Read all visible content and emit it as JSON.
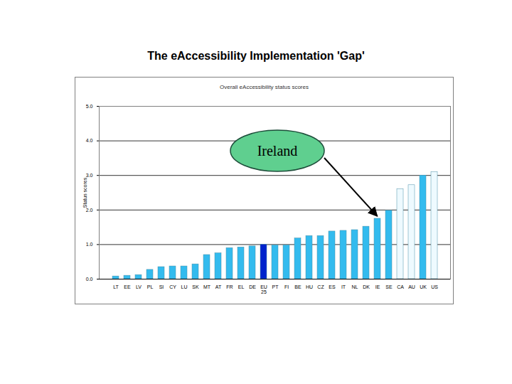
{
  "chart_data": {
    "type": "bar",
    "title": "The eAccessibility Implementation 'Gap'",
    "subtitle": "Overall eAccessibility status scores",
    "y_label": "Status scores",
    "categories": [
      "LT",
      "EE",
      "LV",
      "PL",
      "SI",
      "CY",
      "LU",
      "SK",
      "MT",
      "AT",
      "FR",
      "EL",
      "DE",
      "EU 25",
      "PT",
      "FI",
      "BE",
      "HU",
      "CZ",
      "ES",
      "IT",
      "NL",
      "DK",
      "IE",
      "SE",
      "CA",
      "AU",
      "UK",
      "US"
    ],
    "values": [
      0.08,
      0.1,
      0.12,
      0.27,
      0.35,
      0.37,
      0.37,
      0.43,
      0.7,
      0.75,
      0.9,
      0.92,
      0.95,
      1.0,
      0.98,
      0.98,
      1.18,
      1.25,
      1.25,
      1.38,
      1.4,
      1.42,
      1.52,
      1.75,
      1.98,
      2.6,
      2.72,
      3.0,
      3.1
    ],
    "colors": [
      "#33bbee",
      "#33bbee",
      "#33bbee",
      "#33bbee",
      "#33bbee",
      "#33bbee",
      "#33bbee",
      "#33bbee",
      "#33bbee",
      "#33bbee",
      "#33bbee",
      "#33bbee",
      "#33bbee",
      "#0022cc",
      "#33bbee",
      "#33bbee",
      "#33bbee",
      "#33bbee",
      "#33bbee",
      "#33bbee",
      "#33bbee",
      "#33bbee",
      "#33bbee",
      "#33bbee",
      "#33bbee",
      "#eefaff",
      "#eefaff",
      "#33bbee",
      "#eefaff"
    ],
    "ylim": [
      0,
      5
    ],
    "yticks": [
      0,
      1,
      2,
      3,
      4,
      5
    ],
    "grid": true,
    "annotations": [
      {
        "text": "Ireland",
        "category": "IE"
      }
    ]
  }
}
